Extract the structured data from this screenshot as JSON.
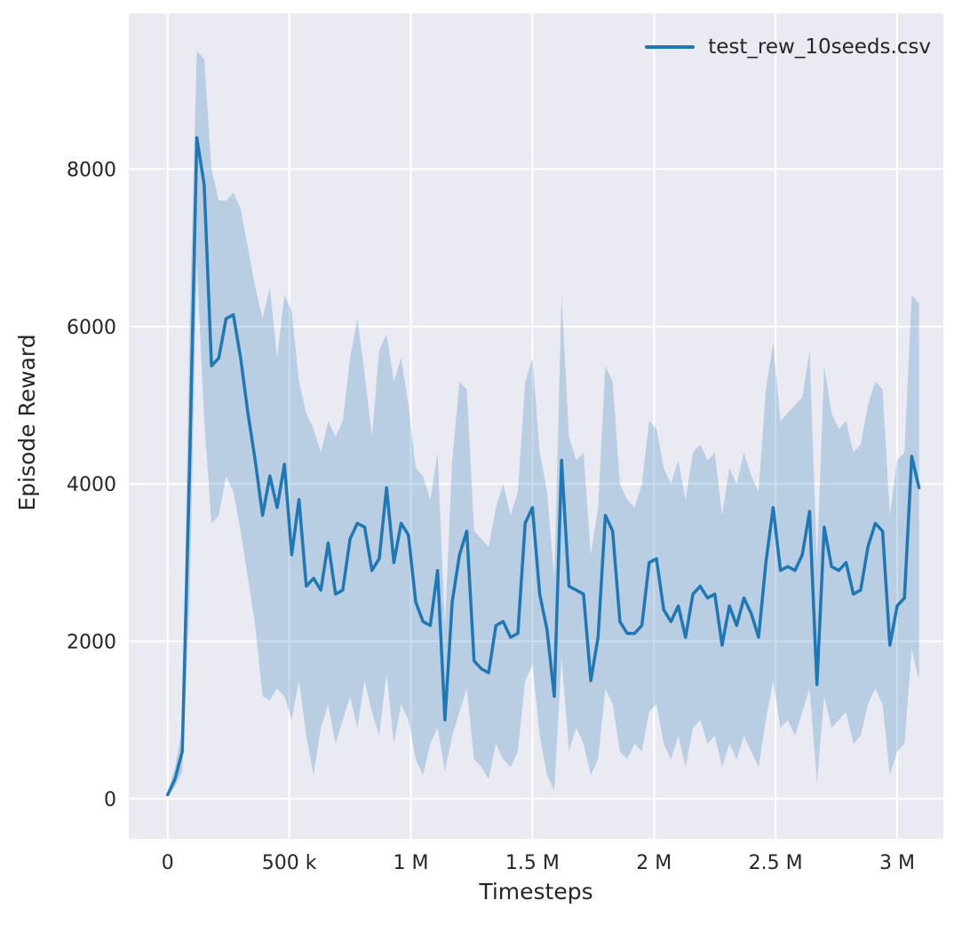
{
  "chart_data": {
    "type": "line",
    "title": "",
    "xlabel": "Timesteps",
    "ylabel": "Episode Reward",
    "xlim": [
      -160000,
      3190000
    ],
    "ylim": [
      -510,
      9980
    ],
    "grid": true,
    "legend_position": "upper right",
    "background_color": "#eaeaf2",
    "grid_color": "#ffffff",
    "text_color": "#262626",
    "x_ticks": {
      "values": [
        0,
        500000,
        1000000,
        1500000,
        2000000,
        2500000,
        3000000
      ],
      "labels": [
        "0",
        "500 k",
        "1 M",
        "1.5 M",
        "2 M",
        "2.5 M",
        "3 M"
      ]
    },
    "y_ticks": {
      "values": [
        0,
        2000,
        4000,
        6000,
        8000
      ],
      "labels": [
        "0",
        "2000",
        "4000",
        "6000",
        "8000"
      ]
    },
    "series": [
      {
        "name": "test_rew_10seeds.csv",
        "color": "#1f77b4",
        "band_color": "rgba(31,119,180,0.24)",
        "x": [
          0,
          30000,
          60000,
          90000,
          120000,
          150000,
          180000,
          210000,
          240000,
          270000,
          300000,
          330000,
          360000,
          390000,
          420000,
          450000,
          480000,
          510000,
          540000,
          570000,
          600000,
          630000,
          660000,
          690000,
          720000,
          750000,
          780000,
          810000,
          840000,
          870000,
          900000,
          930000,
          960000,
          990000,
          1020000,
          1050000,
          1080000,
          1110000,
          1140000,
          1170000,
          1200000,
          1230000,
          1260000,
          1290000,
          1320000,
          1350000,
          1380000,
          1410000,
          1440000,
          1470000,
          1500000,
          1530000,
          1560000,
          1590000,
          1620000,
          1650000,
          1680000,
          1710000,
          1740000,
          1770000,
          1800000,
          1830000,
          1860000,
          1890000,
          1920000,
          1950000,
          1980000,
          2010000,
          2040000,
          2070000,
          2100000,
          2130000,
          2160000,
          2190000,
          2220000,
          2250000,
          2280000,
          2310000,
          2340000,
          2370000,
          2400000,
          2430000,
          2460000,
          2490000,
          2520000,
          2550000,
          2580000,
          2610000,
          2640000,
          2670000,
          2700000,
          2730000,
          2760000,
          2790000,
          2820000,
          2850000,
          2880000,
          2910000,
          2940000,
          2970000,
          3000000,
          3030000,
          3060000,
          3090000
        ],
        "mean": [
          50,
          250,
          600,
          4200,
          8400,
          7800,
          5500,
          5600,
          6100,
          6150,
          5600,
          4900,
          4300,
          3600,
          4100,
          3700,
          4250,
          3100,
          3800,
          2700,
          2800,
          2650,
          3250,
          2600,
          2650,
          3300,
          3500,
          3450,
          2900,
          3050,
          3950,
          3000,
          3500,
          3350,
          2500,
          2250,
          2200,
          2900,
          1000,
          2500,
          3100,
          3400,
          1750,
          1650,
          1600,
          2200,
          2250,
          2050,
          2100,
          3500,
          3700,
          2600,
          2150,
          1300,
          4300,
          2700,
          2650,
          2600,
          1500,
          2050,
          3600,
          3400,
          2250,
          2100,
          2100,
          2200,
          3000,
          3050,
          2400,
          2250,
          2450,
          2050,
          2600,
          2700,
          2550,
          2600,
          1950,
          2450,
          2200,
          2550,
          2350,
          2050,
          3000,
          3700,
          2900,
          2950,
          2900,
          3100,
          3650,
          1450,
          3450,
          2950,
          2900,
          3000,
          2600,
          2650,
          3200,
          3500,
          3400,
          1950,
          2450,
          2550,
          4350,
          3950
        ],
        "lower": [
          30,
          150,
          350,
          2500,
          6800,
          4800,
          3500,
          3600,
          4100,
          3900,
          3400,
          2800,
          2200,
          1300,
          1250,
          1400,
          1300,
          1000,
          1500,
          800,
          300,
          900,
          1200,
          700,
          1000,
          1300,
          900,
          1500,
          1100,
          800,
          1600,
          700,
          1200,
          1000,
          500,
          300,
          700,
          900,
          350,
          800,
          1100,
          1400,
          500,
          400,
          250,
          700,
          500,
          400,
          600,
          1500,
          1700,
          800,
          300,
          100,
          1800,
          600,
          900,
          700,
          300,
          500,
          1400,
          1200,
          600,
          500,
          700,
          600,
          1100,
          1200,
          700,
          500,
          800,
          400,
          900,
          1000,
          700,
          800,
          400,
          700,
          500,
          800,
          600,
          400,
          1000,
          1500,
          900,
          1000,
          800,
          1100,
          1400,
          200,
          1300,
          900,
          1000,
          1100,
          700,
          800,
          1200,
          1400,
          1200,
          300,
          600,
          700,
          1900,
          1500
        ],
        "upper": [
          80,
          400,
          900,
          6000,
          9500,
          9400,
          8000,
          7600,
          7600,
          7700,
          7500,
          7000,
          6500,
          6100,
          6500,
          5600,
          6400,
          6200,
          5300,
          4900,
          4700,
          4400,
          4800,
          4600,
          4800,
          5600,
          6100,
          5400,
          4600,
          5700,
          5900,
          5300,
          5600,
          5000,
          4200,
          4100,
          3800,
          4400,
          2200,
          4300,
          5300,
          5200,
          3400,
          3300,
          3200,
          3700,
          4000,
          3600,
          3900,
          5300,
          5600,
          4400,
          3900,
          2800,
          6400,
          4600,
          4300,
          4400,
          3100,
          3700,
          5500,
          5300,
          4000,
          3800,
          3700,
          4000,
          4800,
          4700,
          4200,
          4000,
          4300,
          3800,
          4400,
          4500,
          4300,
          4400,
          3600,
          4200,
          4000,
          4400,
          4100,
          3900,
          5200,
          5800,
          4800,
          4900,
          5000,
          5100,
          5700,
          3000,
          5500,
          4900,
          4700,
          4800,
          4400,
          4500,
          5000,
          5300,
          5200,
          3600,
          4300,
          4400,
          6400,
          6300
        ]
      }
    ]
  }
}
